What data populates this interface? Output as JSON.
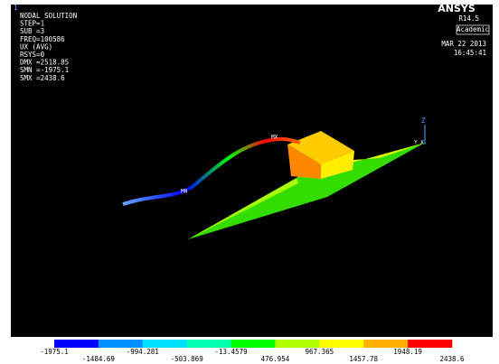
{
  "window_number": "1",
  "info": [
    "NODAL SOLUTION",
    "STEP=1",
    "SUB =3",
    "FREQ=100586",
    "UX       (AVG)",
    "RSYS=0",
    "DMX =2518.85",
    "SMN =-1975.1",
    "SMX =2438.6"
  ],
  "brand": {
    "name": "ANSYS",
    "release": "R14.5",
    "edition": "Academic",
    "date": "MAR 22 2013",
    "time": "16:45:41"
  },
  "model_labels": {
    "max": "MX",
    "min": "MN",
    "axis_z": "Z",
    "axis_yx": "Y X"
  },
  "legend": {
    "colors": [
      "#0000ff",
      "#0090ff",
      "#00e0ff",
      "#00ffb0",
      "#00ff00",
      "#b0ff00",
      "#ffff00",
      "#ffb000",
      "#ff0000"
    ],
    "labels": [
      "-1975.1",
      "-1484.69",
      "-994.281",
      "-503.869",
      "-13.4579",
      "476.954",
      "967.365",
      "1457.78",
      "1948.19",
      "2438.6"
    ]
  }
}
